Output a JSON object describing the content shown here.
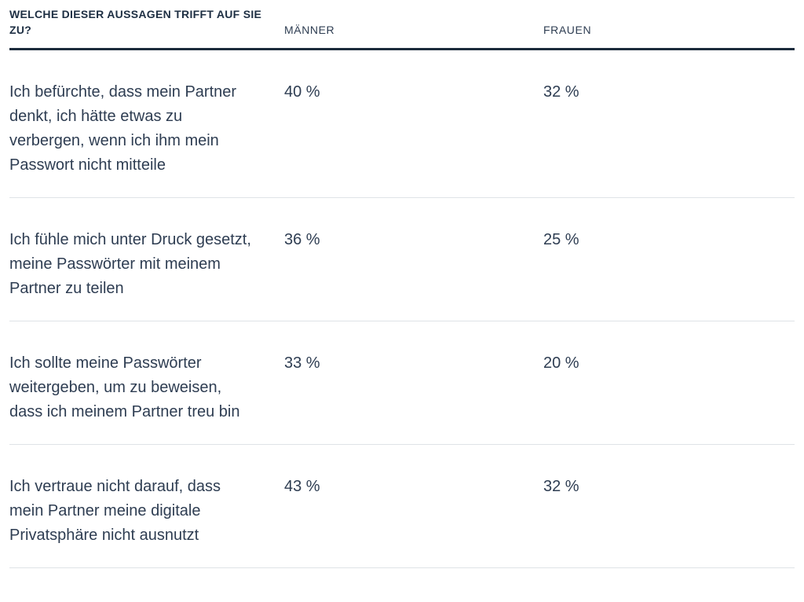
{
  "colors": {
    "background": "#ffffff",
    "text_heading": "#1e2f43",
    "text_body": "#2e3d52",
    "rule_dark": "#1b2b3c",
    "rule_light": "#dfe3e7"
  },
  "chart_data": {
    "type": "table",
    "title": "WELCHE DIESER AUSSAGEN TRIFFT AUF SIE ZU?",
    "columns": [
      "MÄNNER",
      "FRAUEN"
    ],
    "rows": [
      {
        "statement": "Ich befürchte, dass mein Partner denkt, ich hätte etwas zu verbergen, wenn ich ihm mein Passwort nicht mitteile",
        "maenner": "40 %",
        "frauen": "32 %",
        "maenner_value": 40,
        "frauen_value": 32
      },
      {
        "statement": "Ich fühle mich unter Druck gesetzt, meine Passwörter mit meinem Partner zu teilen",
        "maenner": "36 %",
        "frauen": "25 %",
        "maenner_value": 36,
        "frauen_value": 25
      },
      {
        "statement": "Ich sollte meine Passwörter weitergeben, um zu beweisen, dass ich meinem Partner treu bin",
        "maenner": "33 %",
        "frauen": "20 %",
        "maenner_value": 33,
        "frauen_value": 20
      },
      {
        "statement": "Ich vertraue nicht darauf, dass mein Partner meine digitale Privatsphäre nicht ausnutzt",
        "maenner": "43 %",
        "frauen": "32 %",
        "maenner_value": 43,
        "frauen_value": 32
      }
    ]
  }
}
